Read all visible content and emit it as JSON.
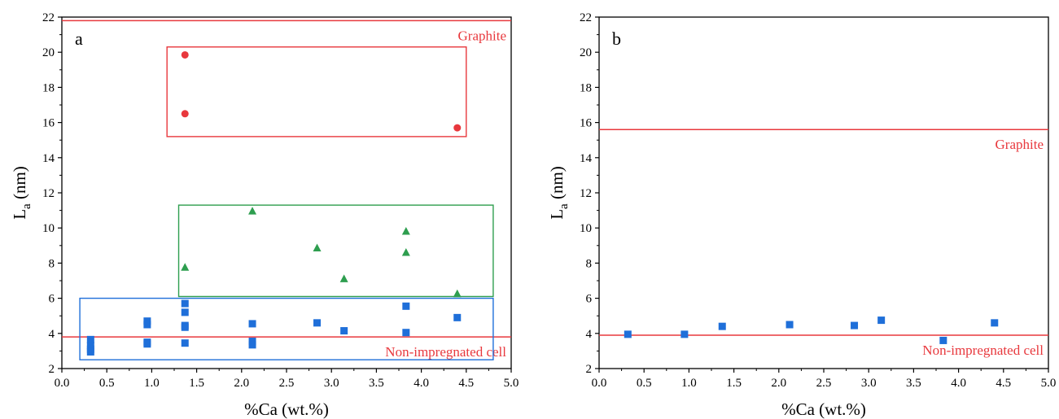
{
  "colors": {
    "red": "#e8383d",
    "green": "#2e9e4f",
    "blue": "#1f6fd9",
    "axis": "#000000"
  },
  "chart_data": [
    {
      "type": "scatter",
      "panel": "a",
      "xlabel": "%Ca (wt.%)",
      "ylabel_main": "L",
      "ylabel_sub": "a",
      "ylabel_unit": " (nm)",
      "xlim": [
        0,
        5
      ],
      "ylim": [
        2,
        22
      ],
      "xticks": [
        "0.0",
        "0.5",
        "1.0",
        "1.5",
        "2.0",
        "2.5",
        "3.0",
        "3.5",
        "4.0",
        "4.5",
        "5.0"
      ],
      "yticks": [
        "2",
        "4",
        "6",
        "8",
        "10",
        "12",
        "14",
        "16",
        "18",
        "20",
        "22"
      ],
      "reference_lines": [
        {
          "label": "Graphite",
          "y": 21.8,
          "color": "#e8383d"
        },
        {
          "label": "Non-impregnated cell",
          "y": 3.8,
          "color": "#e8383d"
        }
      ],
      "boxes": [
        {
          "color": "#e8383d",
          "x0": 1.17,
          "x1": 4.5,
          "y0": 15.2,
          "y1": 20.3
        },
        {
          "color": "#2e9e4f",
          "x0": 1.3,
          "x1": 4.8,
          "y0": 6.1,
          "y1": 11.3
        },
        {
          "color": "#1f6fd9",
          "x0": 0.2,
          "x1": 4.8,
          "y0": 2.5,
          "y1": 6.0
        }
      ],
      "series": [
        {
          "marker": "circle",
          "color": "#e8383d",
          "points": [
            [
              1.37,
              19.85
            ],
            [
              1.37,
              16.5
            ],
            [
              4.4,
              15.7
            ]
          ]
        },
        {
          "marker": "triangle",
          "color": "#2e9e4f",
          "points": [
            [
              1.37,
              7.75
            ],
            [
              2.12,
              10.95
            ],
            [
              2.84,
              8.85
            ],
            [
              3.14,
              7.1
            ],
            [
              3.83,
              9.8
            ],
            [
              3.83,
              8.6
            ],
            [
              4.4,
              6.25
            ]
          ]
        },
        {
          "marker": "square",
          "color": "#1f6fd9",
          "points": [
            [
              0.32,
              3.65
            ],
            [
              0.32,
              3.3
            ],
            [
              0.32,
              3.1
            ],
            [
              0.32,
              2.95
            ],
            [
              0.95,
              4.7
            ],
            [
              0.95,
              4.5
            ],
            [
              0.95,
              3.5
            ],
            [
              0.95,
              3.4
            ],
            [
              1.37,
              5.7
            ],
            [
              1.37,
              5.2
            ],
            [
              1.37,
              4.45
            ],
            [
              1.37,
              4.35
            ],
            [
              1.37,
              3.45
            ],
            [
              2.12,
              4.55
            ],
            [
              2.12,
              3.55
            ],
            [
              2.12,
              3.35
            ],
            [
              2.84,
              4.6
            ],
            [
              3.14,
              4.15
            ],
            [
              3.83,
              5.55
            ],
            [
              3.83,
              4.05
            ],
            [
              4.4,
              4.9
            ]
          ]
        }
      ]
    },
    {
      "type": "scatter",
      "panel": "b",
      "xlabel": "%Ca (wt.%)",
      "ylabel_main": "L",
      "ylabel_sub": "a",
      "ylabel_unit": " (nm)",
      "xlim": [
        0,
        5
      ],
      "ylim": [
        2,
        22
      ],
      "xticks": [
        "0.0",
        "0.5",
        "1.0",
        "1.5",
        "2.0",
        "2.5",
        "3.0",
        "3.5",
        "4.0",
        "4.5",
        "5.0"
      ],
      "yticks": [
        "2",
        "4",
        "6",
        "8",
        "10",
        "12",
        "14",
        "16",
        "18",
        "20",
        "22"
      ],
      "reference_lines": [
        {
          "label": "Graphite",
          "y": 15.6,
          "color": "#e8383d"
        },
        {
          "label": "Non-impregnated cell",
          "y": 3.9,
          "color": "#e8383d"
        }
      ],
      "boxes": [],
      "series": [
        {
          "marker": "square",
          "color": "#1f6fd9",
          "points": [
            [
              0.32,
              3.95
            ],
            [
              0.95,
              3.95
            ],
            [
              1.37,
              4.4
            ],
            [
              2.12,
              4.5
            ],
            [
              2.84,
              4.45
            ],
            [
              3.14,
              4.75
            ],
            [
              3.83,
              3.6
            ],
            [
              4.4,
              4.6
            ]
          ]
        }
      ]
    }
  ]
}
